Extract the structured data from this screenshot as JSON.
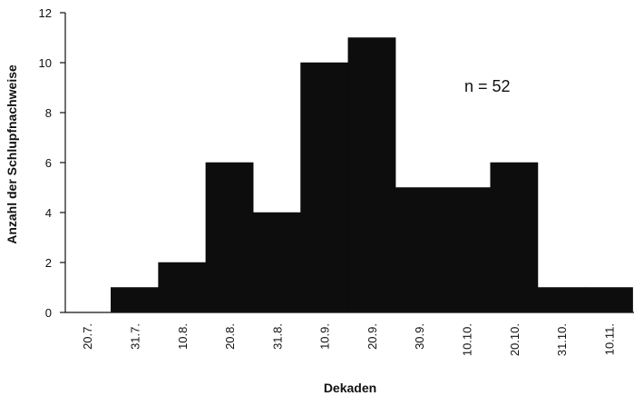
{
  "chart_data": {
    "type": "bar",
    "categories": [
      "20.7.",
      "31.7.",
      "10.8.",
      "20.8.",
      "31.8.",
      "10.9.",
      "20.9.",
      "30.9.",
      "10.10.",
      "20.10.",
      "31.10.",
      "10.11."
    ],
    "values": [
      0,
      1,
      2,
      6,
      4,
      10,
      11,
      5,
      5,
      6,
      1,
      1
    ],
    "xlabel": "Dekaden",
    "ylabel": "Anzahl der Schlupfnachweise",
    "ylim": [
      0,
      12
    ],
    "yticks": [
      0,
      2,
      4,
      6,
      8,
      10,
      12
    ],
    "annotation": "n = 52",
    "grid": false,
    "bar_color": "#0d0d0d"
  }
}
